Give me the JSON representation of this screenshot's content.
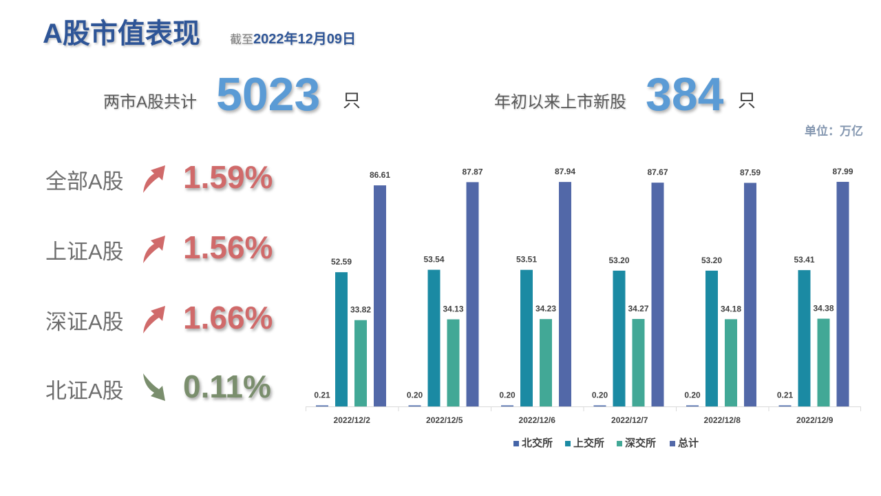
{
  "header": {
    "title": "A股市值表现",
    "subtitle_prefix": "截至",
    "subtitle_date": "2022年12月09日"
  },
  "stats": {
    "total_label": "两市A股共计",
    "total_value": "5023",
    "total_unit": "只",
    "new_label": "年初以来上市新股",
    "new_value": "384",
    "new_unit": "只"
  },
  "unit_note": "单位：万亿",
  "indices": [
    {
      "label": "全部A股",
      "value": "1.59%",
      "direction": "up",
      "color": "#d06a6a"
    },
    {
      "label": "上证A股",
      "value": "1.56%",
      "direction": "up",
      "color": "#d06a6a"
    },
    {
      "label": "深证A股",
      "value": "1.66%",
      "direction": "up",
      "color": "#d06a6a"
    },
    {
      "label": "北证A股",
      "value": "0.11%",
      "direction": "down",
      "color": "#7a8e6d"
    }
  ],
  "chart_data": {
    "type": "bar",
    "categories": [
      "2022/12/2",
      "2022/12/5",
      "2022/12/6",
      "2022/12/7",
      "2022/12/8",
      "2022/12/9"
    ],
    "series": [
      {
        "name": "北交所",
        "color": "#4565a8",
        "values": [
          0.21,
          0.2,
          0.2,
          0.2,
          0.2,
          0.21
        ]
      },
      {
        "name": "上交所",
        "color": "#1b8aa3",
        "values": [
          52.59,
          53.54,
          53.51,
          53.2,
          53.2,
          53.41
        ]
      },
      {
        "name": "深交所",
        "color": "#42a896",
        "values": [
          33.82,
          34.13,
          34.23,
          34.27,
          34.18,
          34.38
        ]
      },
      {
        "name": "总计",
        "color": "#5268a8",
        "values": [
          86.61,
          87.87,
          87.94,
          87.67,
          87.59,
          87.99
        ]
      }
    ],
    "data_labels": [
      [
        "0.21",
        "0.20",
        "0.20",
        "0.20",
        "0.20",
        "0.21"
      ],
      [
        "52.59",
        "53.54",
        "53.51",
        "53.20",
        "53.20",
        "53.41"
      ],
      [
        "33.82",
        "34.13",
        "34.23",
        "34.27",
        "34.18",
        "34.38"
      ],
      [
        "86.61",
        "87.87",
        "87.94",
        "87.67",
        "87.59",
        "87.99"
      ]
    ],
    "ylim": [
      0,
      100
    ],
    "grid": false,
    "legend": "bottom"
  }
}
